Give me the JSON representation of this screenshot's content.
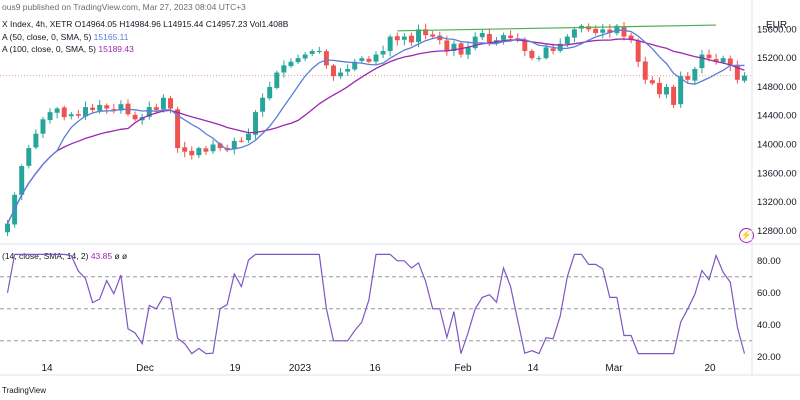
{
  "header": {
    "published": "ous9 published on TradingView.com, Mar 27, 2023 08:04 UTC+3",
    "instrument": "X Index, 4h, XETR",
    "ohlc": "O14964.05 H14984.96 L14915.44 C14957.23 Vol1.408B",
    "ma50": "A (50, close, 0, SMA, 5)",
    "ma50_value": "15165.11",
    "ma100": "A (100, close, 0, SMA, 5)",
    "ma100_value": "15189.43",
    "rsi": "(14, close, SMA, 14, 2)",
    "rsi_value": "43.85",
    "rsi_extra": "ø ø"
  },
  "currency": "EUR",
  "footer": "TradingView",
  "colors": {
    "up": "#26a69a",
    "down": "#ef5350",
    "ma50": "#5b7fd6",
    "ma100": "#9c27b0",
    "rsi": "#7e57c2",
    "trend": "#4caf50",
    "price_line": "#ef9a9a"
  },
  "chart_data": [
    {
      "type": "candlestick",
      "x_tick_labels": [
        "14",
        "Dec",
        "19",
        "2023",
        "16",
        "Feb",
        "14",
        "Mar",
        "20"
      ],
      "y_tick_labels": [
        "15600.00",
        "15200.00",
        "14800.00",
        "14400.00",
        "14000.00",
        "13600.00",
        "13200.00",
        "12800.00"
      ],
      "ylim": [
        12700,
        15800
      ],
      "current_price": 14957.23,
      "close_series": [
        12900,
        13300,
        13700,
        13950,
        14150,
        14350,
        14450,
        14500,
        14380,
        14420,
        14400,
        14520,
        14480,
        14550,
        14500,
        14480,
        14560,
        14420,
        14350,
        14380,
        14520,
        14480,
        14650,
        14500,
        13950,
        13900,
        13850,
        13950,
        13900,
        14000,
        13950,
        13920,
        14050,
        14050,
        14150,
        14450,
        14650,
        14800,
        15000,
        15100,
        15150,
        15200,
        15250,
        15300,
        15300,
        15100,
        14950,
        15000,
        15050,
        15150,
        15200,
        15150,
        15250,
        15300,
        15500,
        15450,
        15500,
        15420,
        15600,
        15520,
        15500,
        15450,
        15300,
        15400,
        15250,
        15350,
        15500,
        15550,
        15420,
        15450,
        15520,
        15480,
        15450,
        15300,
        15200,
        15200,
        15350,
        15300,
        15400,
        15500,
        15600,
        15650,
        15600,
        15550,
        15600,
        15550,
        15650,
        15500,
        15450,
        15150,
        14900,
        14850,
        14700,
        14800,
        14550,
        14950,
        14900,
        15050,
        15250,
        15200,
        15150,
        15200,
        15100,
        14900,
        14957
      ],
      "ma50": {
        "name": "MA 50",
        "last": 15165.11
      },
      "ma100": {
        "name": "MA 100",
        "last": 15189.43
      },
      "trendline": [
        [
          55,
          15580
        ],
        [
          100,
          15660
        ]
      ]
    },
    {
      "type": "line",
      "indicator": "RSI",
      "y_tick_labels": [
        "80.00",
        "60.00",
        "40.00",
        "20.00"
      ],
      "ylim": [
        18,
        88
      ],
      "bands": [
        30,
        50,
        70
      ],
      "last": 43.85
    }
  ]
}
